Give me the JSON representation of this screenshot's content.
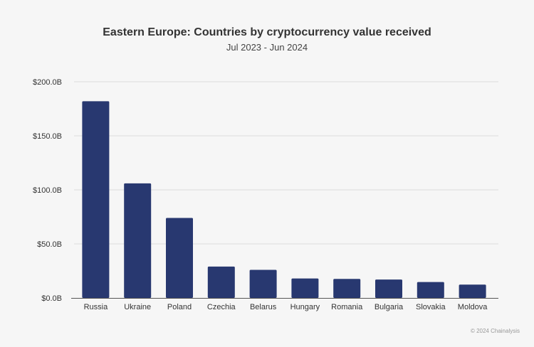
{
  "chart_data": {
    "type": "bar",
    "title": "Eastern Europe: Countries by cryptocurrency value received",
    "subtitle": "Jul 2023 - Jun 2024",
    "categories": [
      "Russia",
      "Ukraine",
      "Poland",
      "Czechia",
      "Belarus",
      "Hungary",
      "Romania",
      "Bulgaria",
      "Slovakia",
      "Moldova"
    ],
    "values": [
      182,
      106,
      74,
      29,
      26,
      18,
      17.6,
      17,
      14.7,
      12.3
    ],
    "value_unit": "USD billions",
    "ylim": [
      0,
      200
    ],
    "yticks": [
      0,
      50,
      100,
      150,
      200
    ],
    "ytick_labels": [
      "$0.0B",
      "$50.0B",
      "$100.0B",
      "$150.0B",
      "$200.0B"
    ],
    "xlabel": "",
    "ylabel": "",
    "grid": true,
    "bar_color": "#283870"
  },
  "footer": {
    "credit": "© 2024 Chainalysis"
  }
}
